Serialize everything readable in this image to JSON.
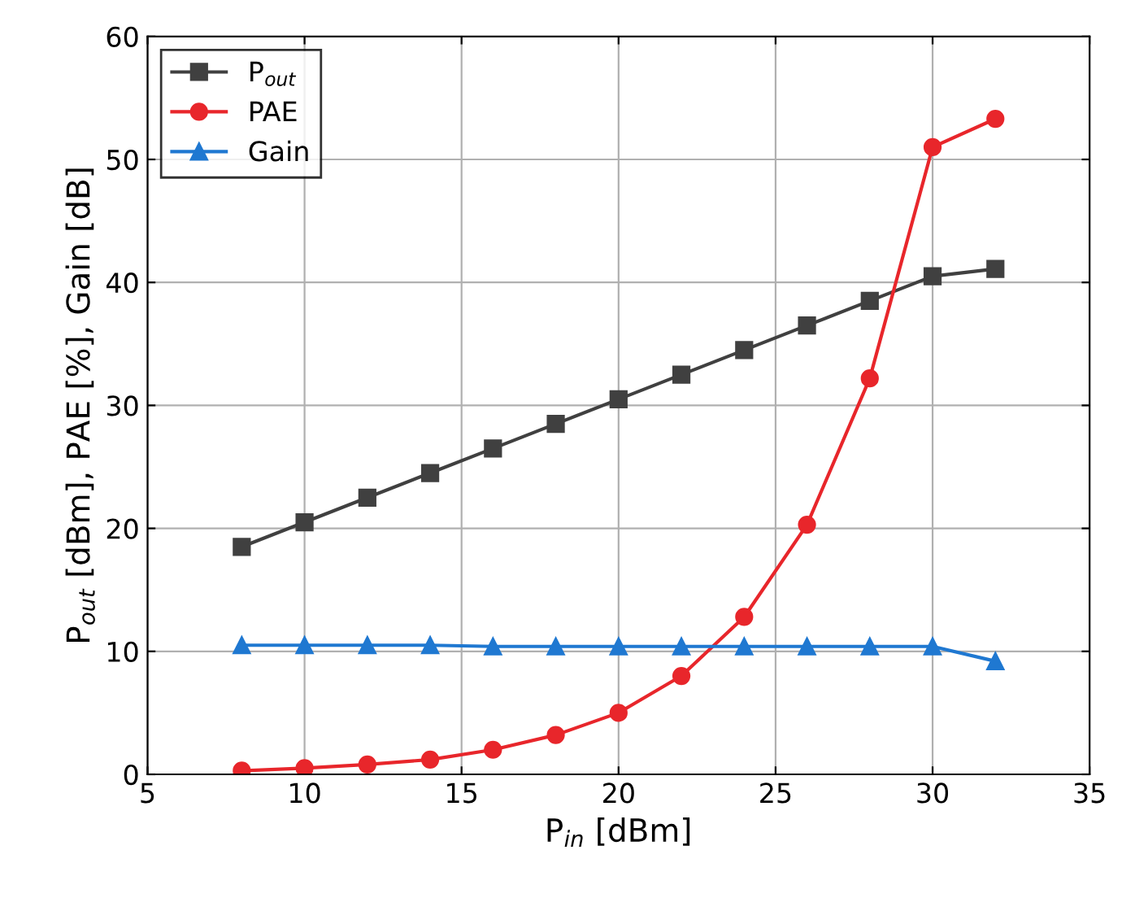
{
  "chart_data": {
    "type": "line",
    "xlabel": "P$_{in}$ [dBm]",
    "ylabel": "P$_{out}$ [dBm], PAE [%], Gain [dB]",
    "x": [
      8,
      10,
      12,
      14,
      16,
      18,
      20,
      22,
      24,
      26,
      28,
      30,
      32
    ],
    "series": [
      {
        "name": "P$_{out}$",
        "color": "#404040",
        "marker": "square",
        "values": [
          18.5,
          20.5,
          22.5,
          24.5,
          26.5,
          28.5,
          30.5,
          32.5,
          34.5,
          36.5,
          38.5,
          40.5,
          41.1
        ]
      },
      {
        "name": "PAE",
        "color": "#e8262b",
        "marker": "circle",
        "values": [
          0.3,
          0.5,
          0.8,
          1.2,
          2.0,
          3.2,
          5.0,
          8.0,
          12.8,
          20.3,
          32.2,
          51.0,
          53.3
        ]
      },
      {
        "name": "Gain",
        "color": "#1f78d1",
        "marker": "triangle",
        "values": [
          10.5,
          10.5,
          10.5,
          10.5,
          10.4,
          10.4,
          10.4,
          10.4,
          10.4,
          10.4,
          10.4,
          10.4,
          9.2
        ]
      }
    ],
    "xlim": [
      5,
      35
    ],
    "xticks": [
      5,
      10,
      15,
      20,
      25,
      30,
      35
    ],
    "ylim": [
      0,
      60
    ],
    "yticks": [
      0,
      10,
      20,
      30,
      40,
      50,
      60
    ],
    "grid": true,
    "legend": "top left",
    "line_style": "solid"
  }
}
